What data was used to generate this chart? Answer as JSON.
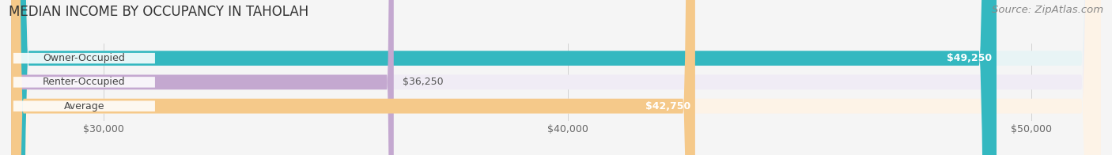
{
  "title": "MEDIAN INCOME BY OCCUPANCY IN TAHOLAH",
  "source": "Source: ZipAtlas.com",
  "categories": [
    "Owner-Occupied",
    "Renter-Occupied",
    "Average"
  ],
  "values": [
    49250,
    36250,
    42750
  ],
  "bar_colors": [
    "#34b8c0",
    "#c4a8d0",
    "#f5c98a"
  ],
  "bar_bg_colors": [
    "#e8f4f5",
    "#f0ecf5",
    "#fdf3e7"
  ],
  "value_labels": [
    "$49,250",
    "$36,250",
    "$42,750"
  ],
  "value_label_inside": [
    true,
    false,
    true
  ],
  "tick_labels": [
    "$30,000",
    "$40,000",
    "$50,000"
  ],
  "tick_values": [
    30000,
    40000,
    50000
  ],
  "xmin": 28000,
  "xmax": 51500,
  "bar_height": 0.62,
  "title_fontsize": 12,
  "source_fontsize": 9.5,
  "label_fontsize": 9,
  "value_fontsize": 9,
  "tick_fontsize": 9,
  "background_color": "#f5f5f5"
}
